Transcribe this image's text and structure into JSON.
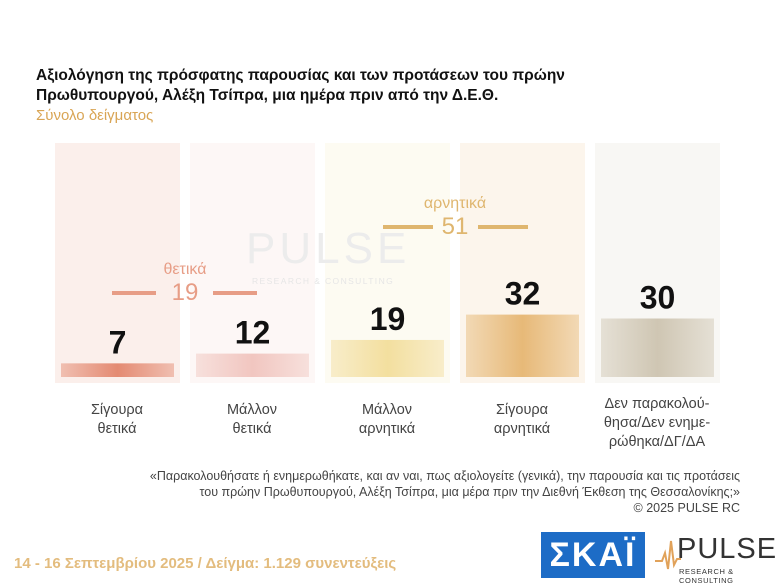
{
  "header": {
    "title_line1": "Αξιολόγηση της πρόσφατης παρουσίας και των προτάσεων του πρώην",
    "title_line2": "Πρωθυπουργού, Αλέξη Τσίπρα, μια ημέρα πριν από την Δ.Ε.Θ.",
    "subtitle": "Σύνολο δείγματος"
  },
  "chart_data": {
    "type": "bar",
    "categories": [
      "Σίγουρα θετικά",
      "Μάλλον θετικά",
      "Μάλλον αρνητικά",
      "Σίγουρα αρνητικά",
      "Δεν παρακολού- θησα/Δεν ενημε- ρώθηκα/ΔΓ/ΔΑ"
    ],
    "category_lines": [
      [
        "Σίγουρα",
        "θετικά"
      ],
      [
        "Μάλλον",
        "θετικά"
      ],
      [
        "Μάλλον",
        "αρνητικά"
      ],
      [
        "Σίγουρα",
        "αρνητικά"
      ],
      [
        "Δεν παρακολού-",
        "θησα/Δεν ενημε-",
        "ρώθηκα/ΔΓ/ΔΑ"
      ]
    ],
    "values": [
      7,
      12,
      19,
      32,
      30
    ],
    "value_labels": [
      "7",
      "12",
      "19",
      "32",
      "30"
    ],
    "colors": [
      "#e48a72",
      "#f1c6c0",
      "#f3df9f",
      "#e7b978",
      "#cfc6b3"
    ],
    "groups": [
      {
        "label": "θετικά",
        "value": "19",
        "color": "#e79d86"
      },
      {
        "label": "αρνητικά",
        "value": "51",
        "color": "#dfb66f"
      }
    ],
    "ylim": [
      0,
      100
    ]
  },
  "watermark": {
    "word": "PULSE",
    "sub": "RESEARCH & CONSULTING"
  },
  "footnote": {
    "line1": "«Παρακολουθήσατε ή ενημερωθήκατε, και αν ναι, πως αξιολογείτε (γενικά), την παρουσία και τις προτάσεις",
    "line2": "του πρώην Πρωθυπουργού, Αλέξη Τσίπρα, μια μέρα πριν την Διεθνή Έκθεση της Θεσσαλονίκης;»",
    "line3": "©  2025  PULSE RC"
  },
  "footer": {
    "fieldwork": "14 - 16 Σεπτεμβρίου 2025  /  Δείγμα:  1.129 συνεντεύξεις",
    "skai_logo": "ΣΚΑΪ",
    "pulse_logo": "PULSE",
    "pulse_logo_sub": "RESEARCH & CONSULTING"
  }
}
